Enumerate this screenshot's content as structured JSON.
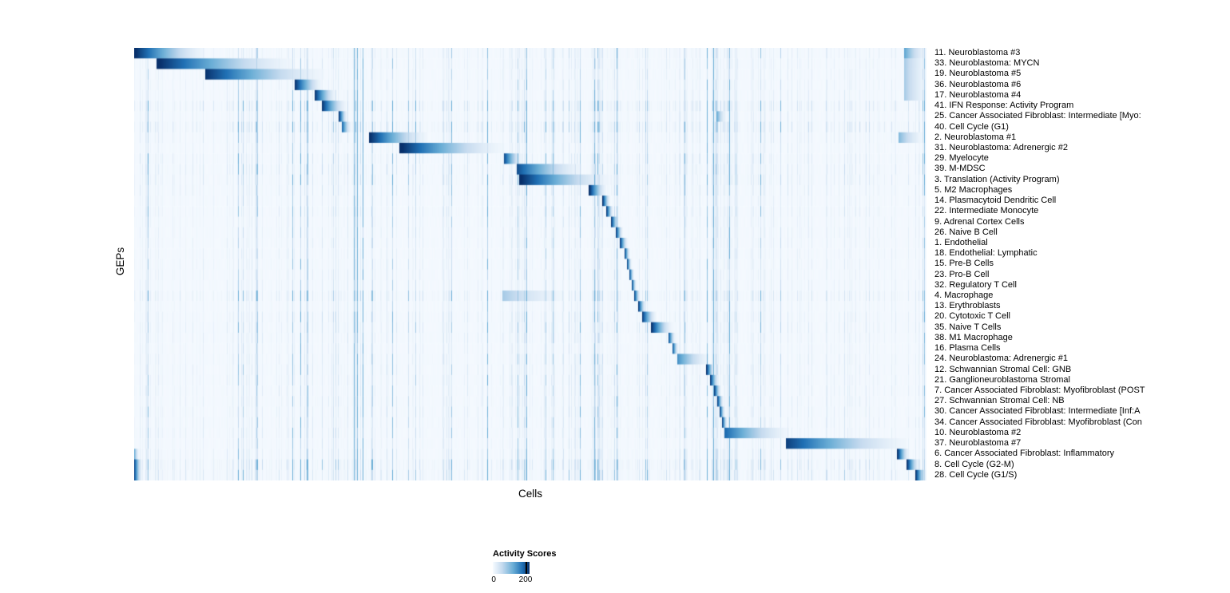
{
  "chart_data": {
    "type": "heatmap",
    "title": "",
    "xlabel": "Cells",
    "ylabel": "GEPs",
    "value_range": [
      0,
      200
    ],
    "colorbar": {
      "title": "Activity Scores",
      "ticks": [
        0,
        200
      ],
      "tick_labels": [
        "0",
        "200"
      ],
      "low_color": "#F7FBFF",
      "high_color": "#08306B"
    },
    "colormap": [
      [
        0.0,
        [
          247,
          251,
          255
        ]
      ],
      [
        0.25,
        [
          198,
          219,
          239
        ]
      ],
      [
        0.5,
        [
          107,
          174,
          214
        ]
      ],
      [
        0.75,
        [
          33,
          113,
          181
        ]
      ],
      [
        1.0,
        [
          8,
          48,
          107
        ]
      ]
    ],
    "n_rows": 41,
    "noise_seed": 1337,
    "stripe_bands": [
      [
        0.25,
        0.3
      ],
      [
        0.575,
        0.635
      ],
      [
        0.73,
        0.755
      ]
    ],
    "rows": [
      {
        "label": "11. Neuroblastoma #3",
        "blocks": [
          [
            0.0,
            0.09,
            1.0
          ],
          [
            0.972,
            1.0,
            0.5
          ]
        ],
        "noise": 1.2
      },
      {
        "label": "33. Neuroblastoma: MYCN",
        "blocks": [
          [
            0.028,
            0.2,
            1.0
          ],
          [
            0.972,
            1.0,
            0.3
          ]
        ],
        "noise": 1.0
      },
      {
        "label": "19. Neuroblastoma #5",
        "blocks": [
          [
            0.09,
            0.24,
            0.95
          ],
          [
            0.972,
            1.0,
            0.3
          ]
        ],
        "noise": 1.0
      },
      {
        "label": "36. Neuroblastoma #6",
        "blocks": [
          [
            0.203,
            0.237,
            0.95
          ],
          [
            0.972,
            1.0,
            0.3
          ]
        ],
        "noise": 1.0
      },
      {
        "label": "17. Neuroblastoma #4",
        "blocks": [
          [
            0.228,
            0.255,
            0.95
          ],
          [
            0.972,
            1.0,
            0.3
          ]
        ],
        "noise": 1.0
      },
      {
        "label": "41. IFN Response: Activity Program",
        "blocks": [
          [
            0.237,
            0.268,
            0.95
          ]
        ],
        "noise": 2.0
      },
      {
        "label": "25. Cancer Associated Fibroblast: Intermediate [Myo:",
        "blocks": [
          [
            0.258,
            0.269,
            1.0
          ],
          [
            0.735,
            0.747,
            0.5
          ]
        ],
        "noise": 1.2
      },
      {
        "label": "40. Cell Cycle (G1)",
        "blocks": [
          [
            0.262,
            0.274,
            0.8
          ]
        ],
        "noise": 2.2
      },
      {
        "label": "2. Neuroblastoma #1",
        "blocks": [
          [
            0.296,
            0.37,
            1.0
          ],
          [
            0.965,
            0.995,
            0.4
          ]
        ],
        "noise": 1.3
      },
      {
        "label": "31. Neuroblastoma: Adrenergic #2",
        "blocks": [
          [
            0.335,
            0.465,
            1.0
          ]
        ],
        "noise": 1.0
      },
      {
        "label": "29. Myelocyte",
        "blocks": [
          [
            0.467,
            0.49,
            0.85
          ]
        ],
        "noise": 1.5
      },
      {
        "label": "39. M-MDSC",
        "blocks": [
          [
            0.483,
            0.565,
            0.85
          ]
        ],
        "noise": 1.5
      },
      {
        "label": "3. Translation (Activity Program)",
        "blocks": [
          [
            0.486,
            0.6,
            1.0
          ]
        ],
        "noise": 1.5
      },
      {
        "label": "5. M2 Macrophages",
        "blocks": [
          [
            0.574,
            0.596,
            1.0
          ]
        ],
        "noise": 1.2
      },
      {
        "label": "14. Plasmacytoid Dendritic Cell",
        "blocks": [
          [
            0.591,
            0.601,
            1.0
          ]
        ],
        "noise": 1.0
      },
      {
        "label": "22. Intermediate Monocyte",
        "blocks": [
          [
            0.596,
            0.605,
            0.95
          ]
        ],
        "noise": 1.2
      },
      {
        "label": "9. Adrenal Cortex Cells",
        "blocks": [
          [
            0.602,
            0.612,
            0.95
          ]
        ],
        "noise": 1.0
      },
      {
        "label": "26. Naive B Cell",
        "blocks": [
          [
            0.608,
            0.617,
            0.95
          ]
        ],
        "noise": 1.0
      },
      {
        "label": "1. Endothelial",
        "blocks": [
          [
            0.613,
            0.623,
            0.95
          ]
        ],
        "noise": 1.0
      },
      {
        "label": "18. Endothelial: Lymphatic",
        "blocks": [
          [
            0.619,
            0.626,
            0.95
          ]
        ],
        "noise": 1.0
      },
      {
        "label": "15. Pre-B Cells",
        "blocks": [
          [
            0.622,
            0.628,
            0.95
          ]
        ],
        "noise": 1.0
      },
      {
        "label": "23. Pro-B Cell",
        "blocks": [
          [
            0.625,
            0.631,
            0.95
          ]
        ],
        "noise": 1.0
      },
      {
        "label": "32. Regulatory T Cell",
        "blocks": [
          [
            0.628,
            0.634,
            0.95
          ]
        ],
        "noise": 1.0
      },
      {
        "label": "4. Macrophage",
        "blocks": [
          [
            0.631,
            0.639,
            0.95
          ],
          [
            0.465,
            0.54,
            0.3
          ]
        ],
        "noise": 1.8
      },
      {
        "label": "13. Erythroblasts",
        "blocks": [
          [
            0.636,
            0.646,
            1.0
          ]
        ],
        "noise": 1.0
      },
      {
        "label": "20. Cytotoxic T Cell",
        "blocks": [
          [
            0.641,
            0.659,
            0.95
          ]
        ],
        "noise": 1.3
      },
      {
        "label": "35. Naive T Cells",
        "blocks": [
          [
            0.652,
            0.679,
            1.0
          ]
        ],
        "noise": 1.3
      },
      {
        "label": "38. M1 Macrophage",
        "blocks": [
          [
            0.674,
            0.683,
            0.95
          ]
        ],
        "noise": 1.2
      },
      {
        "label": "16. Plasma Cells",
        "blocks": [
          [
            0.679,
            0.687,
            0.95
          ]
        ],
        "noise": 1.0
      },
      {
        "label": "24. Neuroblastoma: Adrenergic #1",
        "blocks": [
          [
            0.685,
            0.726,
            0.6
          ]
        ],
        "noise": 1.2
      },
      {
        "label": "12. Schwannian Stromal Cell: GNB",
        "blocks": [
          [
            0.722,
            0.733,
            1.0
          ]
        ],
        "noise": 1.2
      },
      {
        "label": "21. Ganglioneuroblastoma Stromal",
        "blocks": [
          [
            0.727,
            0.738,
            0.95
          ]
        ],
        "noise": 1.2
      },
      {
        "label": "7. Cancer Associated Fibroblast: Myofibroblast (POST",
        "blocks": [
          [
            0.732,
            0.741,
            0.95
          ]
        ],
        "noise": 1.2
      },
      {
        "label": "27. Schwannian Stromal Cell: NB",
        "blocks": [
          [
            0.736,
            0.744,
            0.95
          ]
        ],
        "noise": 1.2
      },
      {
        "label": "30. Cancer Associated Fibroblast: Intermediate [Inf:A",
        "blocks": [
          [
            0.739,
            0.746,
            0.95
          ]
        ],
        "noise": 1.2
      },
      {
        "label": "34. Cancer Associated Fibroblast: Myofibroblast (Con",
        "blocks": [
          [
            0.742,
            0.749,
            0.95
          ]
        ],
        "noise": 1.2
      },
      {
        "label": "10. Neuroblastoma #2",
        "blocks": [
          [
            0.745,
            0.827,
            0.75
          ]
        ],
        "noise": 1.2
      },
      {
        "label": "37. Neuroblastoma #7",
        "blocks": [
          [
            0.823,
            0.975,
            0.9
          ]
        ],
        "noise": 1.0
      },
      {
        "label": "6. Cancer Associated Fibroblast: Inflammatory",
        "blocks": [
          [
            0.963,
            0.978,
            1.0
          ],
          [
            0.0,
            0.006,
            0.5
          ]
        ],
        "noise": 1.3
      },
      {
        "label": "8. Cell Cycle (G2-M)",
        "blocks": [
          [
            0.975,
            0.991,
            1.0
          ],
          [
            0.0,
            0.01,
            0.9
          ]
        ],
        "noise": 2.2
      },
      {
        "label": "28. Cell Cycle (G1/S)",
        "blocks": [
          [
            0.986,
            1.0,
            1.0
          ],
          [
            0.0,
            0.01,
            0.9
          ]
        ],
        "noise": 2.0
      }
    ]
  }
}
